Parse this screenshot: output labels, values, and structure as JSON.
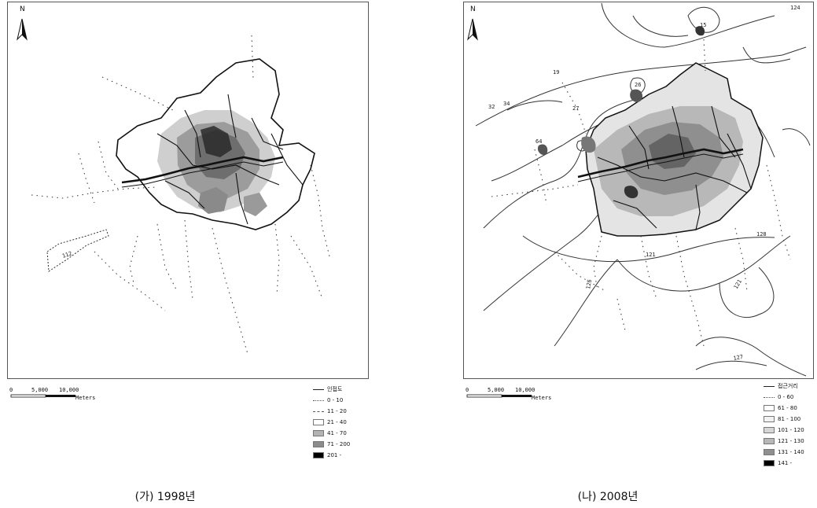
{
  "panels": [
    {
      "caption": "(가) 1998년",
      "north": "N",
      "scale": {
        "labels": [
          "0",
          "5,000",
          "10,000"
        ],
        "unit": "Meters"
      },
      "contour_labels": [
        "112"
      ],
      "legend": [
        {
          "label": "인접도",
          "swatch": "line",
          "color": "#222222"
        },
        {
          "label": "0 - 10",
          "swatch": "dotted",
          "color": "#ffffff"
        },
        {
          "label": "11 - 20",
          "swatch": "dashed",
          "color": "#ffffff"
        },
        {
          "label": "21 - 40",
          "swatch": "box",
          "color": "#ffffff"
        },
        {
          "label": "41 - 70",
          "swatch": "box",
          "color": "#b4b4b4"
        },
        {
          "label": "71 - 200",
          "swatch": "box",
          "color": "#8c8c8c"
        },
        {
          "label": "201 -",
          "swatch": "box",
          "color": "#000000"
        }
      ]
    },
    {
      "caption": "(나) 2008년",
      "north": "N",
      "scale": {
        "labels": [
          "0",
          "5,000",
          "10,000"
        ],
        "unit": "Meters"
      },
      "contour_labels": [
        "124",
        "19",
        "15",
        "26",
        "27",
        "32",
        "34",
        "64",
        "128",
        "121",
        "125",
        "121",
        "127"
      ],
      "legend": [
        {
          "label": "접근거리",
          "swatch": "line",
          "color": "#222222"
        },
        {
          "label": "0 - 60",
          "swatch": "dotted",
          "color": "#ffffff"
        },
        {
          "label": "61 - 80",
          "swatch": "box",
          "color": "#ffffff"
        },
        {
          "label": "81 - 100",
          "swatch": "box",
          "color": "#f2f2f2"
        },
        {
          "label": "101 - 120",
          "swatch": "box",
          "color": "#d6d6d6"
        },
        {
          "label": "121 - 130",
          "swatch": "box",
          "color": "#b8b8b8"
        },
        {
          "label": "131 - 140",
          "swatch": "box",
          "color": "#8f8f8f"
        },
        {
          "label": "141 -",
          "swatch": "box",
          "color": "#000000"
        }
      ]
    }
  ]
}
